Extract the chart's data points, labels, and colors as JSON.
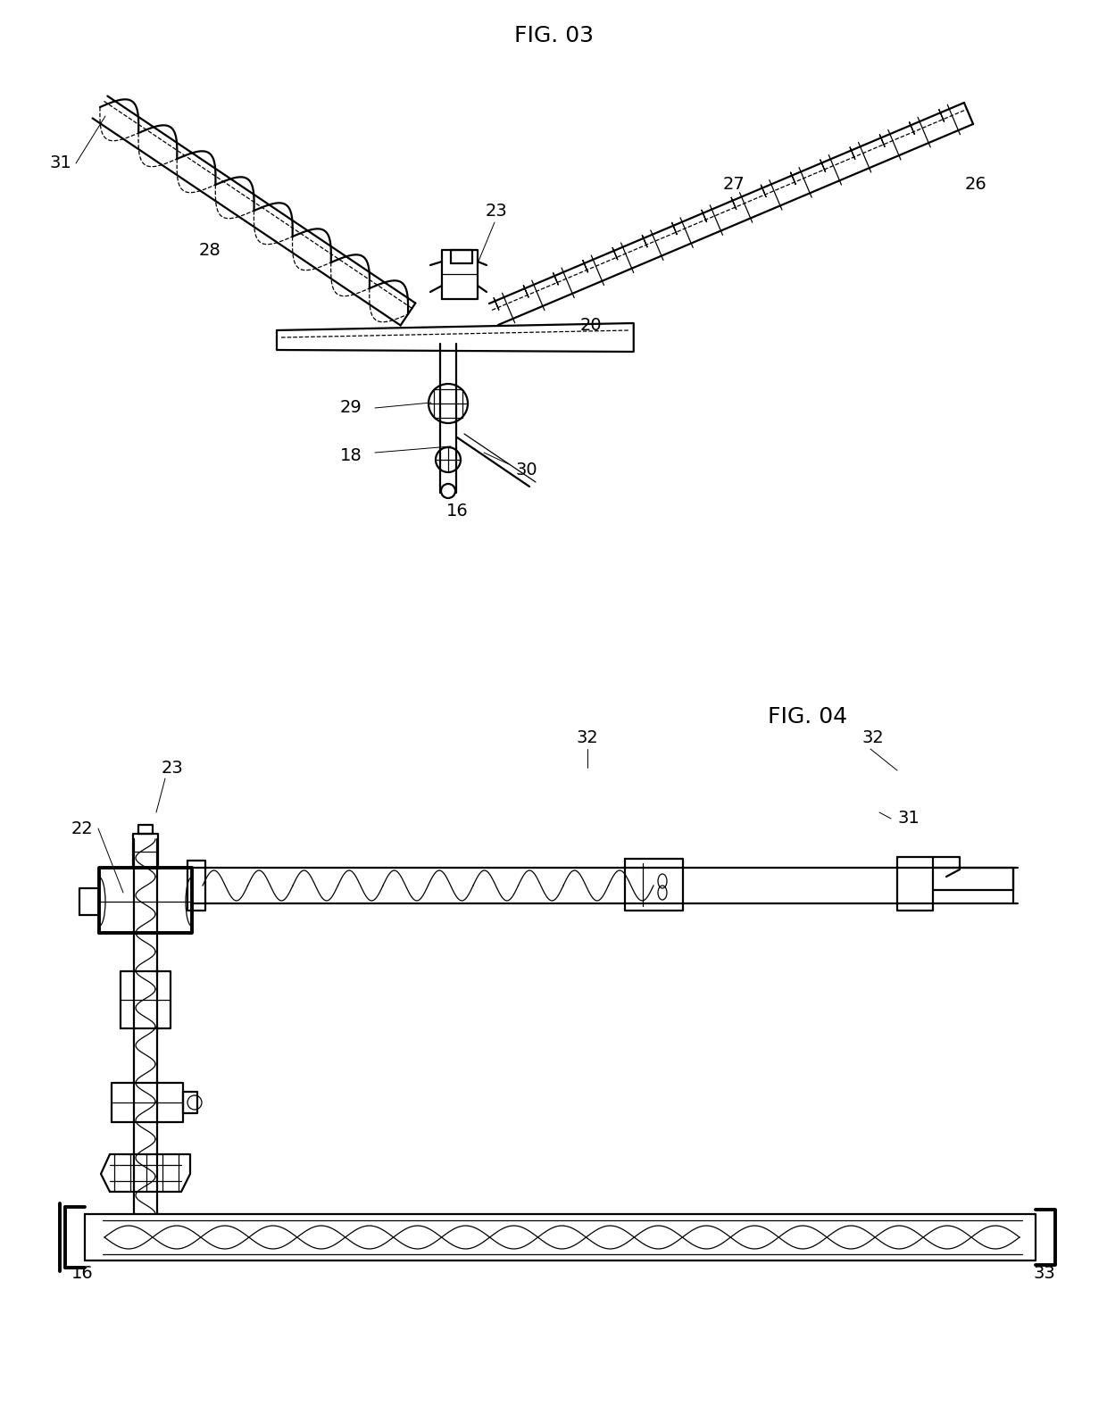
{
  "background_color": "#ffffff",
  "fig_width": 12.4,
  "fig_height": 15.75,
  "fig03_title": "FIG. 03",
  "fig04_title": "FIG. 04",
  "line_color": "#000000",
  "label_color": "#000000",
  "label_fontsize": 14,
  "title_fontsize": 18,
  "lw_main": 1.6,
  "lw_thick": 2.8,
  "lw_thin": 0.9,
  "lw_xtra": 0.7
}
